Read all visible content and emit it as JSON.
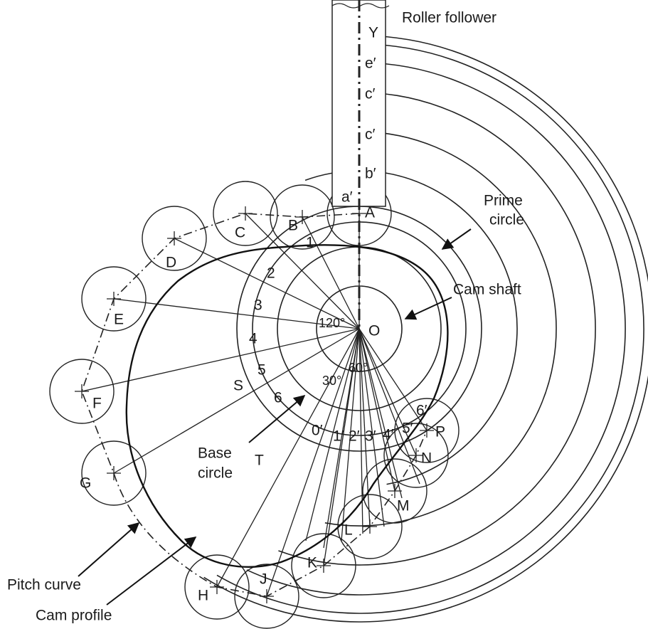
{
  "follower": {
    "label": "Roller follower",
    "marks": [
      "Y",
      "e′",
      "c′",
      "c′",
      "b′",
      "a′"
    ]
  },
  "roller_positions": [
    "A",
    "B",
    "C",
    "D",
    "E",
    "F",
    "G",
    "H",
    "J",
    "K",
    "L",
    "M",
    "N",
    "P"
  ],
  "divisions_outstroke": [
    "1",
    "2",
    "3",
    "4",
    "5",
    "6"
  ],
  "divisions_return": [
    "0′",
    "1′",
    "2′",
    "3′",
    "4′",
    "5′",
    "6′"
  ],
  "angles": [
    "120°",
    "30°",
    "60°"
  ],
  "points": {
    "center": "O",
    "S": "S",
    "T": "T"
  },
  "callouts": {
    "prime_circle": [
      "Prime",
      "circle"
    ],
    "cam_shaft": "Cam shaft",
    "base_circle": [
      "Base",
      "circle"
    ],
    "pitch_curve": "Pitch curve",
    "cam_profile": "Cam profile"
  }
}
